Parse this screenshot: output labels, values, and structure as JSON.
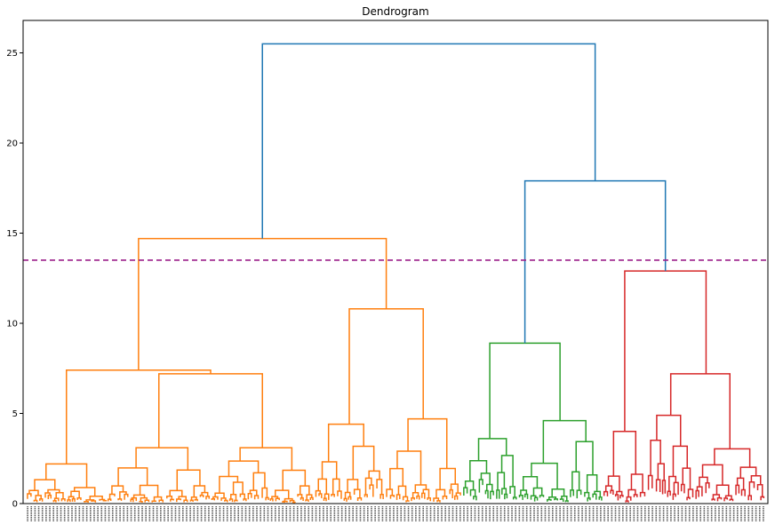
{
  "chart_data": {
    "type": "dendrogram",
    "title": "Dendrogram",
    "xlabel": "",
    "ylabel": "",
    "ylim": [
      0,
      26.8
    ],
    "yticks": [
      0,
      5,
      10,
      15,
      20,
      25
    ],
    "grid": false,
    "legend": "none",
    "cut_line": {
      "y": 13.5,
      "color": "#9b1f8a",
      "style": "dashed"
    },
    "colors": {
      "root": "#1f77b4",
      "cluster_orange": "#ff7f0e",
      "cluster_green": "#2ca02c",
      "cluster_red": "#d62728",
      "cut_line": "#9b1f8a"
    },
    "leaf_count": 200,
    "merges": [
      {
        "height": 25.5,
        "left_height": 14.7,
        "right_height": 17.9,
        "color": "root"
      },
      {
        "height": 17.9,
        "left_height": 8.9,
        "right_height": 12.9,
        "color": "root"
      },
      {
        "height": 14.7,
        "left_height": 7.4,
        "right_height": 10.8,
        "color": "cluster_orange"
      },
      {
        "height": 12.9,
        "left_height": 4.0,
        "right_height": 7.2,
        "color": "cluster_red"
      },
      {
        "height": 10.8,
        "left_height": 4.4,
        "right_height": 4.7,
        "color": "cluster_orange"
      },
      {
        "height": 8.9,
        "left_height": 3.6,
        "right_height": 4.6,
        "color": "cluster_green"
      },
      {
        "height": 7.4,
        "left_height": 2.2,
        "right_height": 7.2,
        "color": "cluster_orange"
      },
      {
        "height": 7.2,
        "left_height": 3.1,
        "right_height": 3.1,
        "color": "cluster_orange"
      },
      {
        "height": 4.7,
        "left_height": 1.8,
        "right_height": 3.7,
        "color": "cluster_orange"
      },
      {
        "height": 4.6,
        "left_height": 2.1,
        "right_height": 3.0,
        "color": "cluster_green"
      },
      {
        "height": 4.4,
        "left_height": 2.0,
        "right_height": 3.1,
        "color": "cluster_orange"
      }
    ]
  }
}
